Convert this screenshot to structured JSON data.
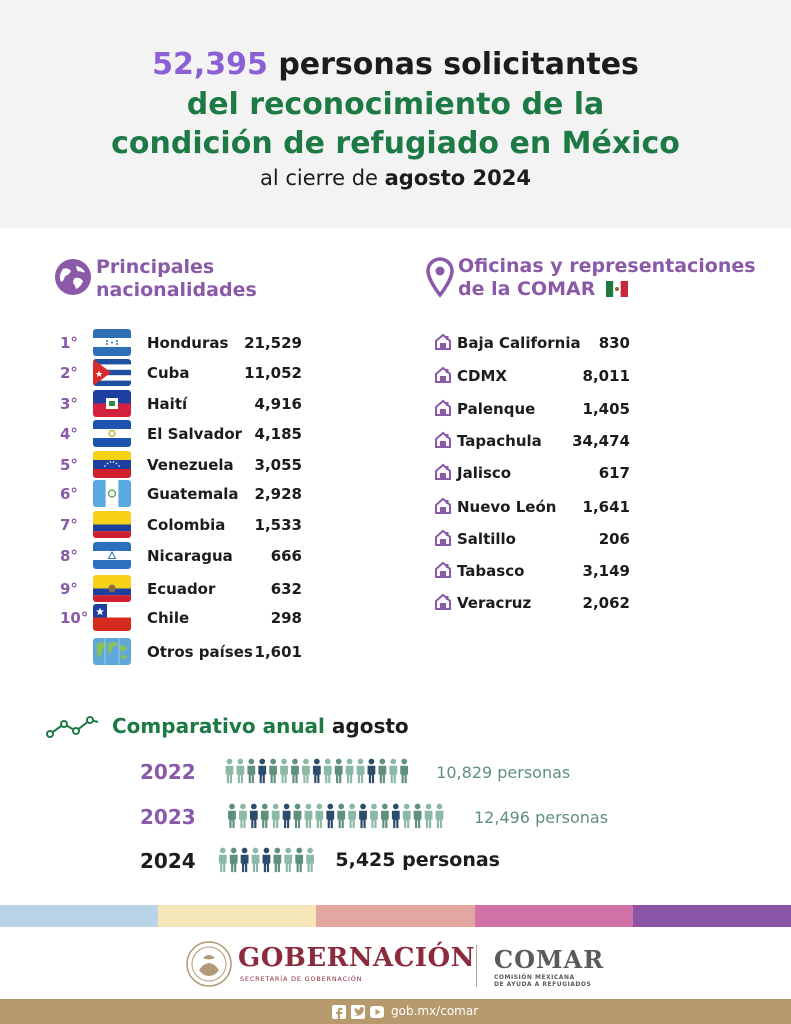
{
  "header": {
    "number": "52,395",
    "line1_rest": " personas solicitantes",
    "line2": "del reconocimiento de la",
    "line3": "condición de refugiado en México",
    "line4_pre": "al cierre de ",
    "line4_bold": "agosto 2024"
  },
  "nationalities": {
    "title_line1": "Principales",
    "title_line2": "nacionalidades",
    "items": [
      {
        "rank": "1°",
        "name": "Honduras",
        "count": "21,529",
        "flag": "honduras-flag"
      },
      {
        "rank": "2°",
        "name": "Cuba",
        "count": "11,052",
        "flag": "cuba-flag"
      },
      {
        "rank": "3°",
        "name": "Haití",
        "count": "4,916",
        "flag": "haiti-flag"
      },
      {
        "rank": "4°",
        "name": "El Salvador",
        "count": "4,185",
        "flag": "el-salvador-flag"
      },
      {
        "rank": "5°",
        "name": "Venezuela",
        "count": "3,055",
        "flag": "venezuela-flag"
      },
      {
        "rank": "6°",
        "name": "Guatemala",
        "count": "2,928",
        "flag": "guatemala-flag"
      },
      {
        "rank": "7°",
        "name": "Colombia",
        "count": "1,533",
        "flag": "colombia-flag"
      },
      {
        "rank": "8°",
        "name": "Nicaragua",
        "count": "666",
        "flag": "nicaragua-flag"
      },
      {
        "rank": "9°",
        "name": "Ecuador",
        "count": "632",
        "flag": "ecuador-flag"
      },
      {
        "rank": "10°",
        "name": "Chile",
        "count": "298",
        "flag": "chile-flag"
      },
      {
        "rank": "",
        "name": "Otros países",
        "count": "1,601",
        "flag": "world-map-icon"
      }
    ]
  },
  "offices": {
    "title_line1": "Oficinas y representaciones",
    "title_line2": "de la COMAR",
    "items": [
      {
        "name": "Baja California",
        "count": "830"
      },
      {
        "name": "CDMX",
        "count": "8,011"
      },
      {
        "name": "Palenque",
        "count": "1,405"
      },
      {
        "name": "Tapachula",
        "count": "34,474"
      },
      {
        "name": "Jalisco",
        "count": "617"
      },
      {
        "name": "Nuevo León",
        "count": "1,641"
      },
      {
        "name": "Saltillo",
        "count": "206"
      },
      {
        "name": "Tabasco",
        "count": "3,149"
      },
      {
        "name": "Veracruz",
        "count": "2,062"
      }
    ]
  },
  "comparison": {
    "title_green": "Comparativo anual",
    "title_black": " agosto",
    "rows": [
      {
        "year": "2022",
        "label": "10,829 personas",
        "icons": 17
      },
      {
        "year": "2023",
        "label": "12,496 personas",
        "icons": 20
      },
      {
        "year": "2024",
        "label": "5,425 personas",
        "icons": 9
      }
    ]
  },
  "footer": {
    "gob": "GOBERNACIÓN",
    "gob_sub": "SECRETARÍA DE GOBERNACIÓN",
    "comar": "COMAR",
    "comar_sub1": "COMISIÓN MEXICANA",
    "comar_sub2": "DE AYUDA A REFUGIADOS",
    "url": "gob.mx/comar",
    "stripe_colors": [
      "#b9d4e7",
      "#f6e7b8",
      "#e3a7a1",
      "#d172a8",
      "#8d55a8"
    ]
  },
  "colors": {
    "purple": "#8a5aa8",
    "green": "#1d7a45",
    "people_light": "#8cb9a5",
    "people_mid": "#5f8f7d",
    "people_dark": "#2d4b6a"
  }
}
